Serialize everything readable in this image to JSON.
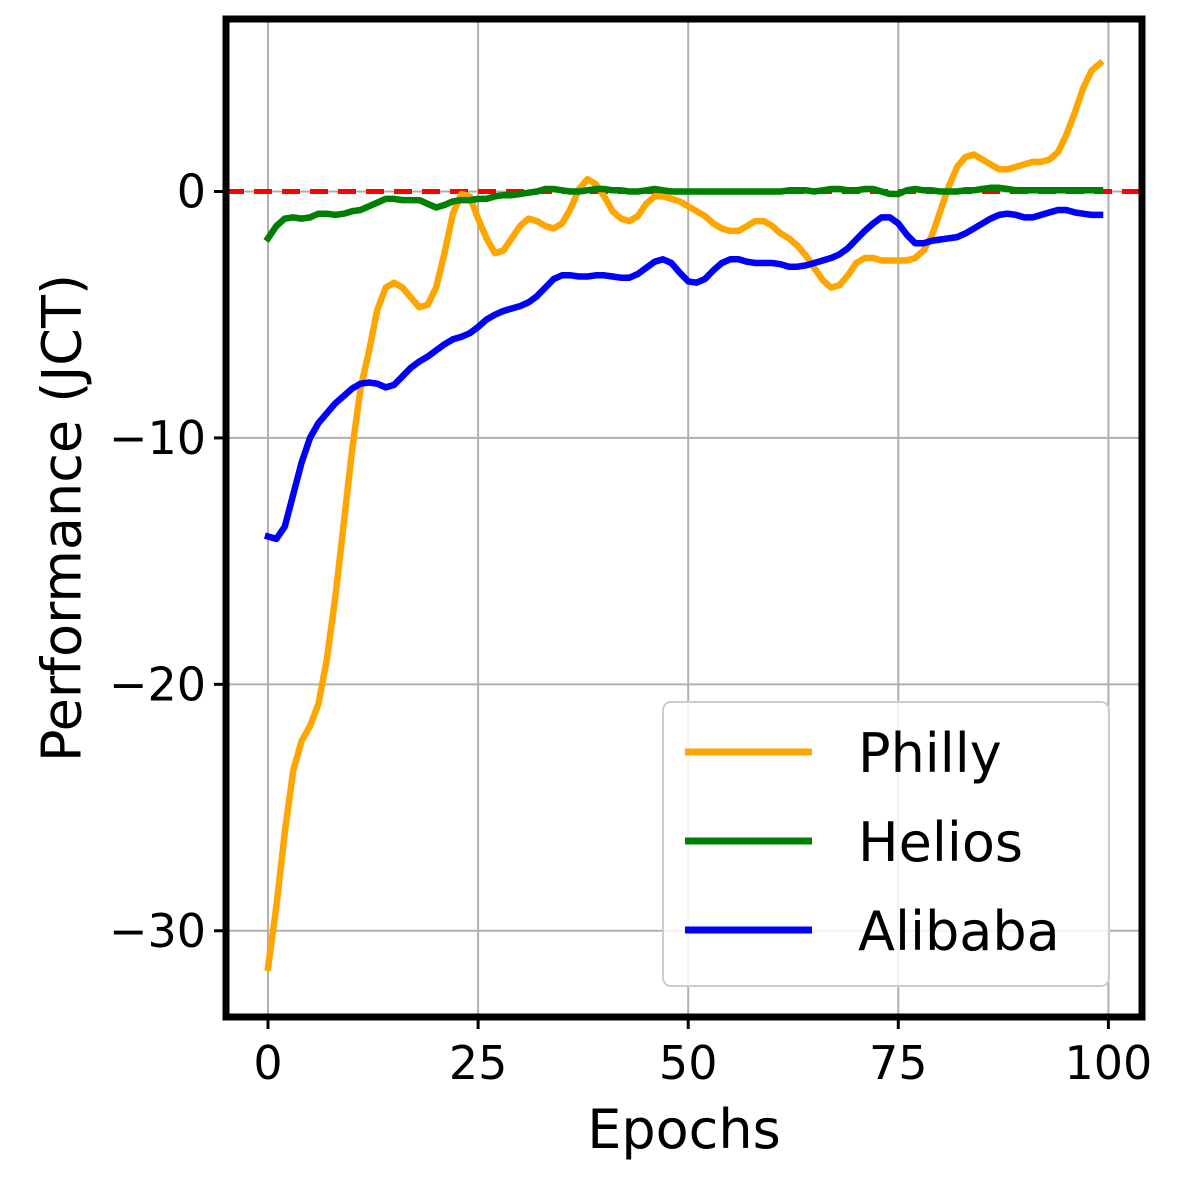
{
  "chart_data": {
    "type": "line",
    "title": "",
    "xlabel": "Epochs",
    "ylabel": "Performance (JCT)",
    "xlim": [
      -5,
      104
    ],
    "ylim": [
      -33.5,
      7
    ],
    "xticks": [
      0,
      25,
      50,
      75,
      100
    ],
    "yticks": [
      0,
      -10,
      -20,
      -30
    ],
    "xtick_labels": [
      "0",
      "25",
      "50",
      "75",
      "100"
    ],
    "ytick_labels": [
      "0",
      "−10",
      "−20",
      "−30"
    ],
    "grid": true,
    "legend_position": "bottom-right",
    "reference_line": {
      "y": 0,
      "color": "#ff0000",
      "style": "dashed"
    },
    "series": [
      {
        "name": "Philly",
        "color": "#ffa500",
        "points": [
          [
            0,
            -31.5
          ],
          [
            1,
            -29
          ],
          [
            2,
            -26
          ],
          [
            3,
            -23.5
          ],
          [
            4,
            -22.3
          ],
          [
            5,
            -21.7
          ],
          [
            6,
            -20.8
          ],
          [
            7,
            -19
          ],
          [
            8,
            -16.5
          ],
          [
            9,
            -13.5
          ],
          [
            10,
            -10.5
          ],
          [
            11,
            -8
          ],
          [
            12,
            -6.5
          ],
          [
            13,
            -4.8
          ],
          [
            14,
            -3.9
          ],
          [
            15,
            -3.7
          ],
          [
            16,
            -3.9
          ],
          [
            17,
            -4.3
          ],
          [
            18,
            -4.7
          ],
          [
            19,
            -4.6
          ],
          [
            20,
            -3.9
          ],
          [
            21,
            -2.5
          ],
          [
            22,
            -0.9
          ],
          [
            23,
            -0.1
          ],
          [
            24,
            -0.2
          ],
          [
            25,
            -1.1
          ],
          [
            26,
            -1.9
          ],
          [
            27,
            -2.5
          ],
          [
            28,
            -2.4
          ],
          [
            29,
            -1.9
          ],
          [
            30,
            -1.4
          ],
          [
            31,
            -1.1
          ],
          [
            32,
            -1.2
          ],
          [
            33,
            -1.4
          ],
          [
            34,
            -1.5
          ],
          [
            35,
            -1.3
          ],
          [
            36,
            -0.7
          ],
          [
            37,
            0.1
          ],
          [
            38,
            0.5
          ],
          [
            39,
            0.3
          ],
          [
            40,
            -0.2
          ],
          [
            41,
            -0.8
          ],
          [
            42,
            -1.1
          ],
          [
            43,
            -1.2
          ],
          [
            44,
            -1.0
          ],
          [
            45,
            -0.5
          ],
          [
            46,
            -0.2
          ],
          [
            47,
            -0.2
          ],
          [
            48,
            -0.3
          ],
          [
            49,
            -0.4
          ],
          [
            50,
            -0.6
          ],
          [
            51,
            -0.8
          ],
          [
            52,
            -1.0
          ],
          [
            53,
            -1.3
          ],
          [
            54,
            -1.5
          ],
          [
            55,
            -1.6
          ],
          [
            56,
            -1.6
          ],
          [
            57,
            -1.4
          ],
          [
            58,
            -1.2
          ],
          [
            59,
            -1.2
          ],
          [
            60,
            -1.4
          ],
          [
            61,
            -1.7
          ],
          [
            62,
            -1.9
          ],
          [
            63,
            -2.2
          ],
          [
            64,
            -2.6
          ],
          [
            65,
            -3.1
          ],
          [
            66,
            -3.6
          ],
          [
            67,
            -3.9
          ],
          [
            68,
            -3.8
          ],
          [
            69,
            -3.4
          ],
          [
            70,
            -2.9
          ],
          [
            71,
            -2.7
          ],
          [
            72,
            -2.7
          ],
          [
            73,
            -2.8
          ],
          [
            74,
            -2.8
          ],
          [
            75,
            -2.8
          ],
          [
            76,
            -2.8
          ],
          [
            77,
            -2.7
          ],
          [
            78,
            -2.4
          ],
          [
            79,
            -1.8
          ],
          [
            80,
            -0.8
          ],
          [
            81,
            0.2
          ],
          [
            82,
            1.0
          ],
          [
            83,
            1.4
          ],
          [
            84,
            1.5
          ],
          [
            85,
            1.3
          ],
          [
            86,
            1.1
          ],
          [
            87,
            0.9
          ],
          [
            88,
            0.9
          ],
          [
            89,
            1.0
          ],
          [
            90,
            1.1
          ],
          [
            91,
            1.2
          ],
          [
            92,
            1.2
          ],
          [
            93,
            1.3
          ],
          [
            94,
            1.6
          ],
          [
            95,
            2.3
          ],
          [
            96,
            3.2
          ],
          [
            97,
            4.2
          ],
          [
            98,
            4.9
          ],
          [
            99,
            5.2
          ]
        ]
      },
      {
        "name": "Helios",
        "color": "#008000",
        "points": [
          [
            0,
            -1.9
          ],
          [
            1,
            -1.4
          ],
          [
            2,
            -1.1
          ],
          [
            3,
            -1.05
          ],
          [
            4,
            -1.1
          ],
          [
            5,
            -1.05
          ],
          [
            6,
            -0.9
          ],
          [
            7,
            -0.9
          ],
          [
            8,
            -0.95
          ],
          [
            9,
            -0.9
          ],
          [
            10,
            -0.8
          ],
          [
            11,
            -0.75
          ],
          [
            12,
            -0.6
          ],
          [
            13,
            -0.45
          ],
          [
            14,
            -0.3
          ],
          [
            15,
            -0.3
          ],
          [
            16,
            -0.35
          ],
          [
            17,
            -0.35
          ],
          [
            18,
            -0.35
          ],
          [
            19,
            -0.5
          ],
          [
            20,
            -0.65
          ],
          [
            21,
            -0.55
          ],
          [
            22,
            -0.4
          ],
          [
            23,
            -0.35
          ],
          [
            24,
            -0.35
          ],
          [
            25,
            -0.3
          ],
          [
            26,
            -0.3
          ],
          [
            27,
            -0.2
          ],
          [
            28,
            -0.15
          ],
          [
            29,
            -0.15
          ],
          [
            30,
            -0.1
          ],
          [
            31,
            -0.05
          ],
          [
            32,
            0.0
          ],
          [
            33,
            0.1
          ],
          [
            34,
            0.1
          ],
          [
            35,
            0.05
          ],
          [
            36,
            0.0
          ],
          [
            37,
            0.0
          ],
          [
            38,
            0.05
          ],
          [
            39,
            0.1
          ],
          [
            40,
            0.1
          ],
          [
            41,
            0.05
          ],
          [
            42,
            0.05
          ],
          [
            43,
            0.0
          ],
          [
            44,
            0.0
          ],
          [
            45,
            0.05
          ],
          [
            46,
            0.1
          ],
          [
            47,
            0.05
          ],
          [
            48,
            0.0
          ],
          [
            49,
            0.0
          ],
          [
            50,
            0.0
          ],
          [
            51,
            0.0
          ],
          [
            52,
            0.0
          ],
          [
            53,
            0.0
          ],
          [
            54,
            0.0
          ],
          [
            55,
            0.0
          ],
          [
            56,
            0.0
          ],
          [
            57,
            0.0
          ],
          [
            58,
            0.0
          ],
          [
            59,
            0.0
          ],
          [
            60,
            0.0
          ],
          [
            61,
            0.0
          ],
          [
            62,
            0.05
          ],
          [
            63,
            0.05
          ],
          [
            64,
            0.05
          ],
          [
            65,
            0.0
          ],
          [
            66,
            0.05
          ],
          [
            67,
            0.1
          ],
          [
            68,
            0.1
          ],
          [
            69,
            0.05
          ],
          [
            70,
            0.05
          ],
          [
            71,
            0.1
          ],
          [
            72,
            0.1
          ],
          [
            73,
            0.0
          ],
          [
            74,
            -0.1
          ],
          [
            75,
            -0.1
          ],
          [
            76,
            0.05
          ],
          [
            77,
            0.1
          ],
          [
            78,
            0.05
          ],
          [
            79,
            0.05
          ],
          [
            80,
            0.0
          ],
          [
            81,
            0.0
          ],
          [
            82,
            0.0
          ],
          [
            83,
            0.05
          ],
          [
            84,
            0.05
          ],
          [
            85,
            0.1
          ],
          [
            86,
            0.15
          ],
          [
            87,
            0.15
          ],
          [
            88,
            0.1
          ],
          [
            89,
            0.05
          ],
          [
            90,
            0.05
          ],
          [
            91,
            0.05
          ],
          [
            92,
            0.05
          ],
          [
            93,
            0.05
          ],
          [
            94,
            0.05
          ],
          [
            95,
            0.05
          ],
          [
            96,
            0.05
          ],
          [
            97,
            0.05
          ],
          [
            98,
            0.05
          ],
          [
            99,
            0.05
          ]
        ]
      },
      {
        "name": "Alibaba",
        "color": "#0000ff",
        "points": [
          [
            0,
            -14.0
          ],
          [
            1,
            -14.1
          ],
          [
            2,
            -13.6
          ],
          [
            3,
            -12.3
          ],
          [
            4,
            -11.0
          ],
          [
            5,
            -10.0
          ],
          [
            6,
            -9.4
          ],
          [
            7,
            -9.0
          ],
          [
            8,
            -8.6
          ],
          [
            9,
            -8.3
          ],
          [
            10,
            -8.0
          ],
          [
            11,
            -7.8
          ],
          [
            12,
            -7.75
          ],
          [
            13,
            -7.8
          ],
          [
            14,
            -7.95
          ],
          [
            15,
            -7.85
          ],
          [
            16,
            -7.5
          ],
          [
            17,
            -7.15
          ],
          [
            18,
            -6.9
          ],
          [
            19,
            -6.7
          ],
          [
            20,
            -6.45
          ],
          [
            21,
            -6.2
          ],
          [
            22,
            -6.0
          ],
          [
            23,
            -5.9
          ],
          [
            24,
            -5.75
          ],
          [
            25,
            -5.5
          ],
          [
            26,
            -5.2
          ],
          [
            27,
            -5.0
          ],
          [
            28,
            -4.85
          ],
          [
            29,
            -4.75
          ],
          [
            30,
            -4.65
          ],
          [
            31,
            -4.5
          ],
          [
            32,
            -4.25
          ],
          [
            33,
            -3.9
          ],
          [
            34,
            -3.55
          ],
          [
            35,
            -3.4
          ],
          [
            36,
            -3.4
          ],
          [
            37,
            -3.45
          ],
          [
            38,
            -3.45
          ],
          [
            39,
            -3.4
          ],
          [
            40,
            -3.4
          ],
          [
            41,
            -3.45
          ],
          [
            42,
            -3.5
          ],
          [
            43,
            -3.5
          ],
          [
            44,
            -3.35
          ],
          [
            45,
            -3.1
          ],
          [
            46,
            -2.85
          ],
          [
            47,
            -2.75
          ],
          [
            48,
            -2.9
          ],
          [
            49,
            -3.3
          ],
          [
            50,
            -3.65
          ],
          [
            51,
            -3.7
          ],
          [
            52,
            -3.55
          ],
          [
            53,
            -3.2
          ],
          [
            54,
            -2.9
          ],
          [
            55,
            -2.75
          ],
          [
            56,
            -2.75
          ],
          [
            57,
            -2.85
          ],
          [
            58,
            -2.9
          ],
          [
            59,
            -2.9
          ],
          [
            60,
            -2.9
          ],
          [
            61,
            -2.95
          ],
          [
            62,
            -3.05
          ],
          [
            63,
            -3.05
          ],
          [
            64,
            -3.0
          ],
          [
            65,
            -2.9
          ],
          [
            66,
            -2.8
          ],
          [
            67,
            -2.7
          ],
          [
            68,
            -2.55
          ],
          [
            69,
            -2.3
          ],
          [
            70,
            -1.95
          ],
          [
            71,
            -1.6
          ],
          [
            72,
            -1.3
          ],
          [
            73,
            -1.05
          ],
          [
            74,
            -1.05
          ],
          [
            75,
            -1.3
          ],
          [
            76,
            -1.75
          ],
          [
            77,
            -2.1
          ],
          [
            78,
            -2.1
          ],
          [
            79,
            -2.0
          ],
          [
            80,
            -1.95
          ],
          [
            81,
            -1.9
          ],
          [
            82,
            -1.85
          ],
          [
            83,
            -1.7
          ],
          [
            84,
            -1.5
          ],
          [
            85,
            -1.3
          ],
          [
            86,
            -1.1
          ],
          [
            87,
            -0.95
          ],
          [
            88,
            -0.9
          ],
          [
            89,
            -0.95
          ],
          [
            90,
            -1.05
          ],
          [
            91,
            -1.05
          ],
          [
            92,
            -0.95
          ],
          [
            93,
            -0.85
          ],
          [
            94,
            -0.75
          ],
          [
            95,
            -0.75
          ],
          [
            96,
            -0.85
          ],
          [
            97,
            -0.9
          ],
          [
            98,
            -0.95
          ],
          [
            99,
            -0.95
          ]
        ]
      }
    ]
  }
}
